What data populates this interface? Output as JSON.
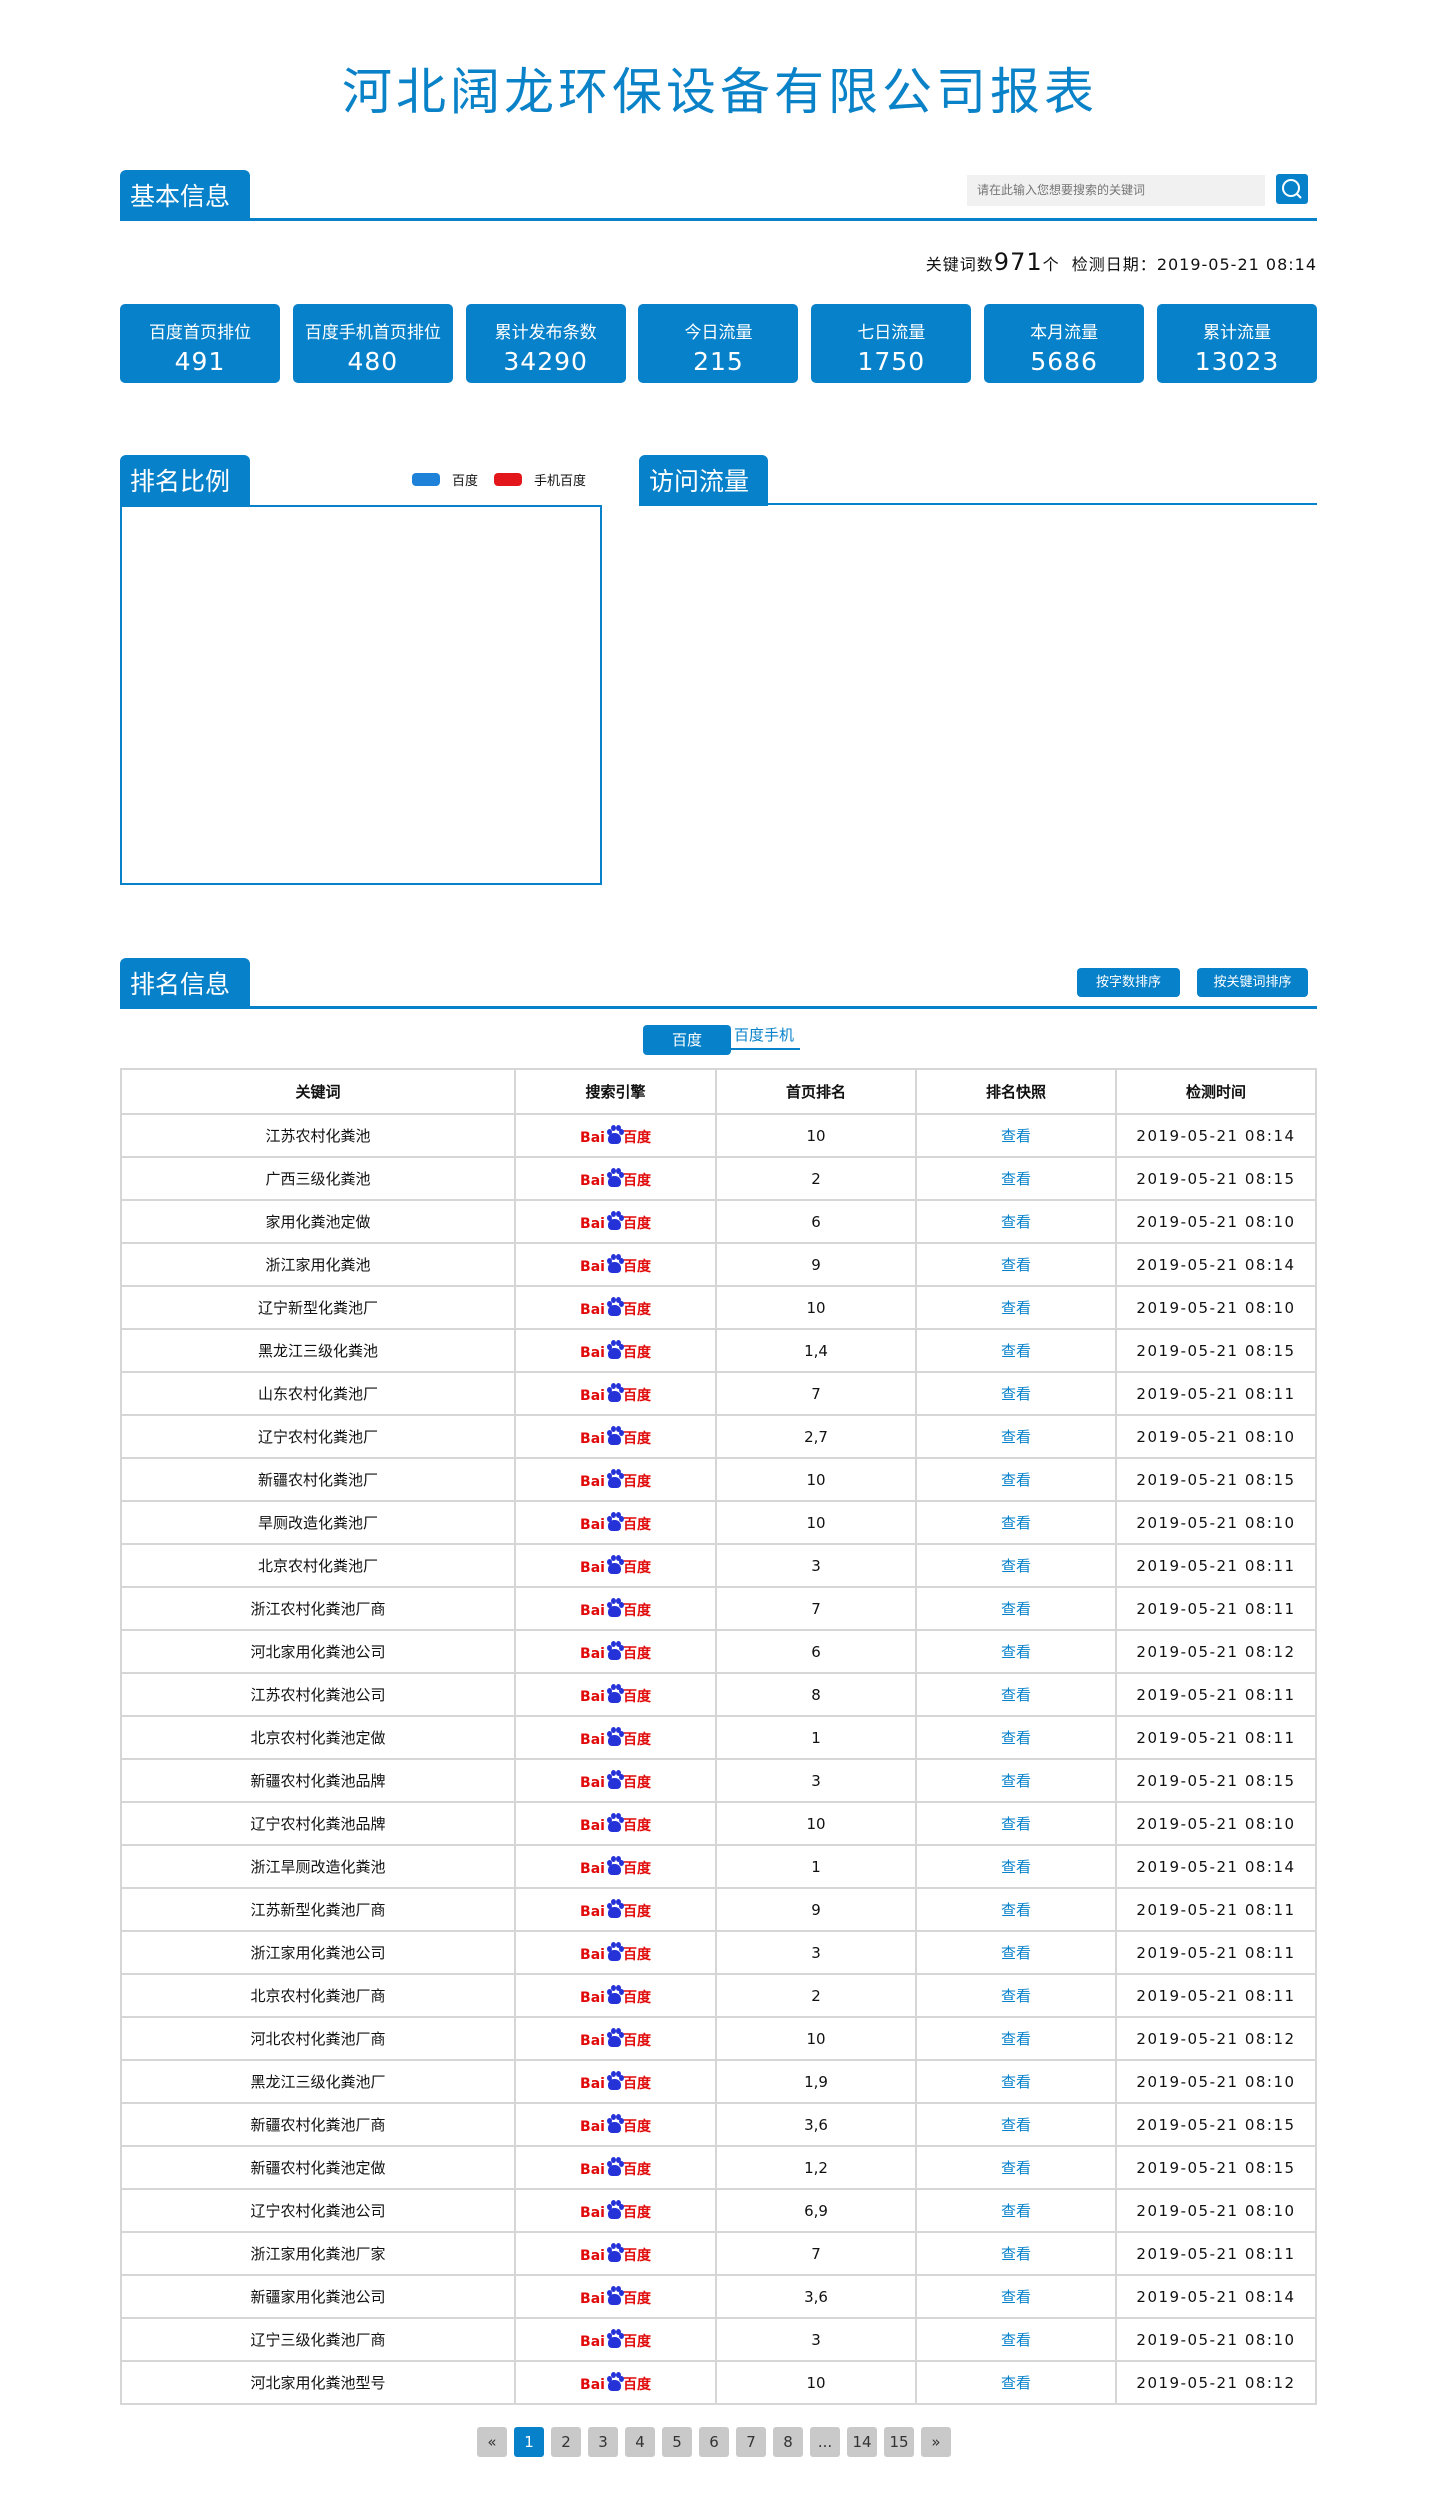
{
  "title": "河北阔龙环保设备有限公司报表",
  "basic": {
    "tab": "基本信息",
    "search_placeholder": "请在此输入您想要搜索的关键词",
    "keyword_count_label": "关键词数",
    "keyword_count": "971",
    "keyword_count_unit": "个",
    "check_date_label": "检测日期：",
    "check_date": "2019-05-21 08:14",
    "stats": [
      {
        "label": "百度首页排位",
        "value": "491"
      },
      {
        "label": "百度手机首页排位",
        "value": "480"
      },
      {
        "label": "累计发布条数",
        "value": "34290"
      },
      {
        "label": "今日流量",
        "value": "215"
      },
      {
        "label": "七日流量",
        "value": "1750"
      },
      {
        "label": "本月流量",
        "value": "5686"
      },
      {
        "label": "累计流量",
        "value": "13023"
      }
    ]
  },
  "ratio": {
    "tab": "排名比例",
    "legend": [
      {
        "label": "百度",
        "color": "#1e82d8"
      },
      {
        "label": "手机百度",
        "color": "#e3161b"
      }
    ]
  },
  "traffic": {
    "tab": "访问流量"
  },
  "ranking": {
    "tab": "排名信息",
    "sort_by_count": "按字数排序",
    "sort_by_keyword": "按关键词排序",
    "subtabs": [
      "百度",
      "百度手机"
    ],
    "columns": [
      "关键词",
      "搜索引擎",
      "首页排名",
      "排名快照",
      "检测时间"
    ],
    "engine_logo": {
      "part1": "Bai",
      "paw": "du",
      "part2": "百度"
    },
    "view_label": "查看",
    "rows": [
      [
        "江苏农村化粪池",
        "10",
        "2019-05-21 08:14"
      ],
      [
        "广西三级化粪池",
        "2",
        "2019-05-21 08:15"
      ],
      [
        "家用化粪池定做",
        "6",
        "2019-05-21 08:10"
      ],
      [
        "浙江家用化粪池",
        "9",
        "2019-05-21 08:14"
      ],
      [
        "辽宁新型化粪池厂",
        "10",
        "2019-05-21 08:10"
      ],
      [
        "黑龙江三级化粪池",
        "1,4",
        "2019-05-21 08:15"
      ],
      [
        "山东农村化粪池厂",
        "7",
        "2019-05-21 08:11"
      ],
      [
        "辽宁农村化粪池厂",
        "2,7",
        "2019-05-21 08:10"
      ],
      [
        "新疆农村化粪池厂",
        "10",
        "2019-05-21 08:15"
      ],
      [
        "旱厕改造化粪池厂",
        "10",
        "2019-05-21 08:10"
      ],
      [
        "北京农村化粪池厂",
        "3",
        "2019-05-21 08:11"
      ],
      [
        "浙江农村化粪池厂商",
        "7",
        "2019-05-21 08:11"
      ],
      [
        "河北家用化粪池公司",
        "6",
        "2019-05-21 08:12"
      ],
      [
        "江苏农村化粪池公司",
        "8",
        "2019-05-21 08:11"
      ],
      [
        "北京农村化粪池定做",
        "1",
        "2019-05-21 08:11"
      ],
      [
        "新疆农村化粪池品牌",
        "3",
        "2019-05-21 08:15"
      ],
      [
        "辽宁农村化粪池品牌",
        "10",
        "2019-05-21 08:10"
      ],
      [
        "浙江旱厕改造化粪池",
        "1",
        "2019-05-21 08:14"
      ],
      [
        "江苏新型化粪池厂商",
        "9",
        "2019-05-21 08:11"
      ],
      [
        "浙江家用化粪池公司",
        "3",
        "2019-05-21 08:11"
      ],
      [
        "北京农村化粪池厂商",
        "2",
        "2019-05-21 08:11"
      ],
      [
        "河北农村化粪池厂商",
        "10",
        "2019-05-21 08:12"
      ],
      [
        "黑龙江三级化粪池厂",
        "1,9",
        "2019-05-21 08:10"
      ],
      [
        "新疆农村化粪池厂商",
        "3,6",
        "2019-05-21 08:15"
      ],
      [
        "新疆农村化粪池定做",
        "1,2",
        "2019-05-21 08:15"
      ],
      [
        "辽宁农村化粪池公司",
        "6,9",
        "2019-05-21 08:10"
      ],
      [
        "浙江家用化粪池厂家",
        "7",
        "2019-05-21 08:11"
      ],
      [
        "新疆家用化粪池公司",
        "3,6",
        "2019-05-21 08:14"
      ],
      [
        "辽宁三级化粪池厂商",
        "3",
        "2019-05-21 08:10"
      ],
      [
        "河北家用化粪池型号",
        "10",
        "2019-05-21 08:12"
      ]
    ]
  },
  "pagination": {
    "items": [
      "«",
      "1",
      "2",
      "3",
      "4",
      "5",
      "6",
      "7",
      "8",
      "...",
      "14",
      "15",
      "»"
    ],
    "current": "1"
  },
  "colors": {
    "accent": "#0782ca"
  }
}
